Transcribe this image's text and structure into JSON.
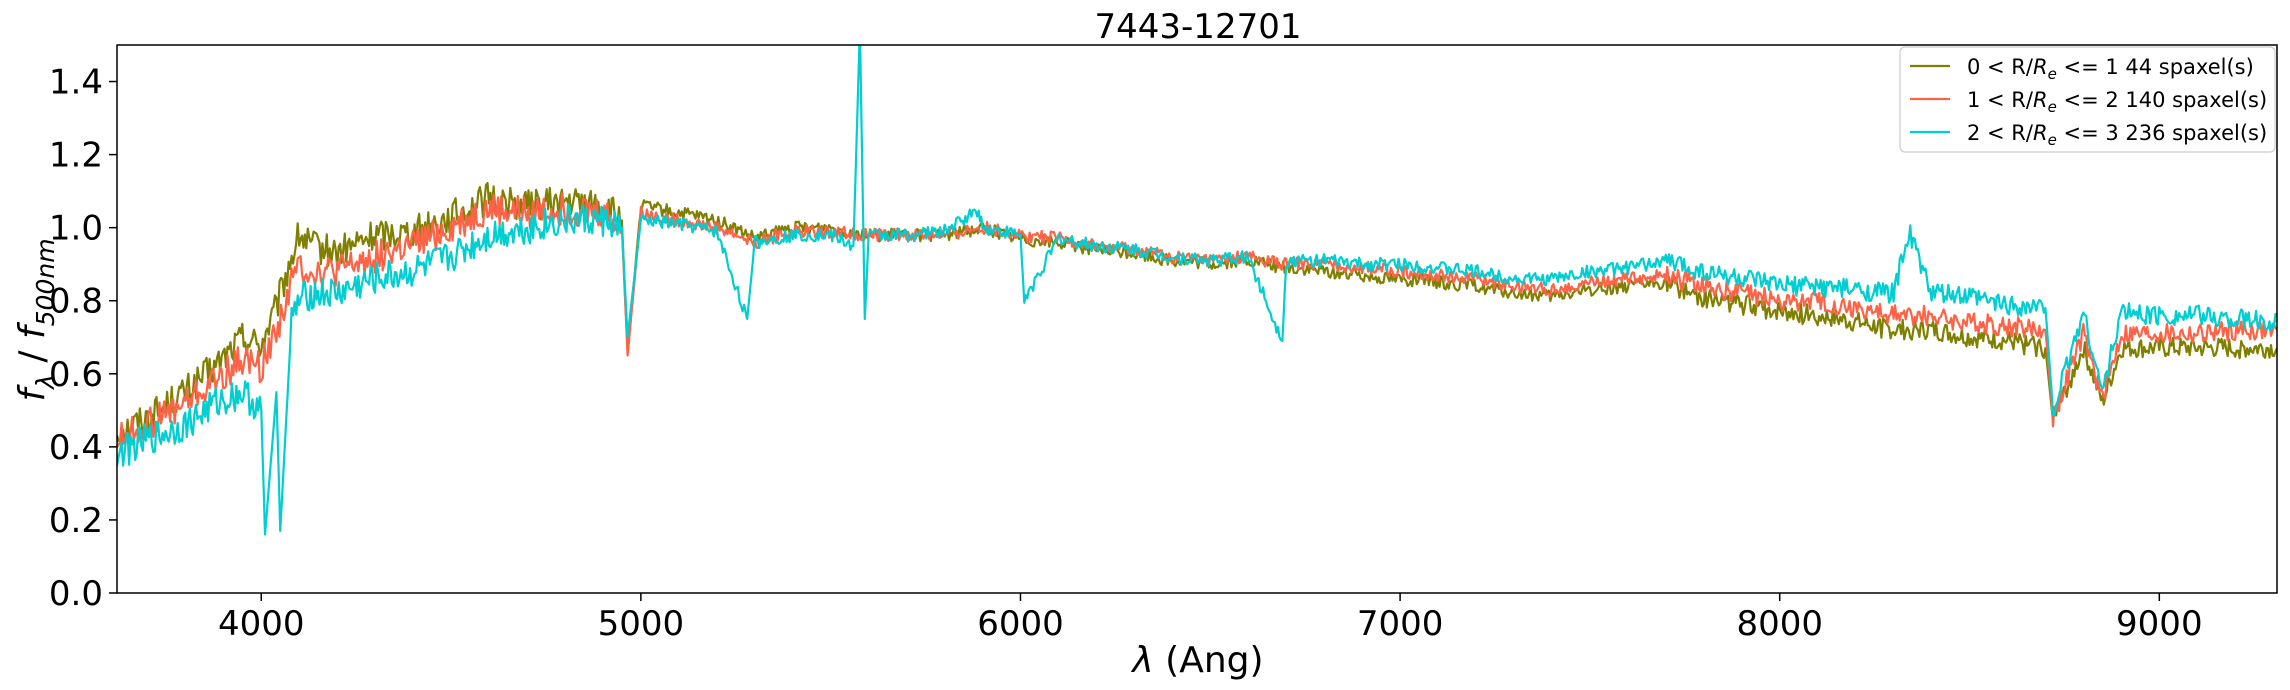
{
  "chart_data": {
    "type": "line",
    "title": "7443-12701",
    "xlabel": "λ (Ang)",
    "ylabel": "f_λ / f_500nm",
    "xlim": [
      3620,
      9310
    ],
    "ylim": [
      0.0,
      1.5
    ],
    "xticks": [
      4000,
      5000,
      6000,
      7000,
      8000,
      9000
    ],
    "yticks": [
      0.0,
      0.2,
      0.4,
      0.6,
      0.8,
      1.0,
      1.2,
      1.4
    ],
    "xtick_labels": [
      "4000",
      "5000",
      "6000",
      "7000",
      "8000",
      "9000"
    ],
    "ytick_labels": [
      "0.0",
      "0.2",
      "0.4",
      "0.6",
      "0.8",
      "1.0",
      "1.2",
      "1.4"
    ],
    "grid": false,
    "legend_position": "top-right",
    "series": [
      {
        "name": "0 < R/R_e <= 1 44 spaxel(s)",
        "label_prefix": "0 < R/",
        "label_suffix": " <= 1 44 spaxel(s)",
        "color": "#808000",
        "x": [
          3620,
          3700,
          3800,
          3880,
          3950,
          4000,
          4040,
          4080,
          4100,
          4130,
          4200,
          4300,
          4400,
          4500,
          4600,
          4700,
          4800,
          4900,
          4950,
          4965,
          5000,
          5100,
          5200,
          5300,
          5400,
          5500,
          5600,
          5700,
          5800,
          5900,
          6000,
          6100,
          6200,
          6300,
          6400,
          6500,
          6600,
          6700,
          6800,
          6900,
          7000,
          7100,
          7200,
          7300,
          7400,
          7500,
          7600,
          7700,
          7800,
          7900,
          8000,
          8100,
          8200,
          8300,
          8400,
          8500,
          8600,
          8700,
          8720,
          8800,
          8850,
          8900,
          9000,
          9100,
          9200,
          9310
        ],
        "y": [
          0.44,
          0.48,
          0.55,
          0.62,
          0.7,
          0.68,
          0.78,
          0.92,
          0.98,
          0.95,
          0.93,
          0.98,
          0.99,
          1.03,
          1.08,
          1.06,
          1.07,
          1.06,
          1.02,
          0.66,
          1.06,
          1.04,
          1.02,
          0.97,
          1.0,
          1.0,
          0.98,
          0.98,
          0.98,
          1.0,
          0.97,
          0.96,
          0.94,
          0.93,
          0.91,
          0.9,
          0.91,
          0.89,
          0.88,
          0.87,
          0.86,
          0.85,
          0.84,
          0.82,
          0.81,
          0.83,
          0.84,
          0.85,
          0.81,
          0.79,
          0.77,
          0.76,
          0.74,
          0.72,
          0.72,
          0.7,
          0.69,
          0.67,
          0.47,
          0.67,
          0.52,
          0.67,
          0.67,
          0.67,
          0.67,
          0.67
        ]
      },
      {
        "name": "1 < R/R_e <= 2 140 spaxel(s)",
        "label_prefix": "1 < R/",
        "label_suffix": " <= 2 140 spaxel(s)",
        "color": "#ff6347",
        "x": [
          3620,
          3700,
          3800,
          3880,
          3950,
          4000,
          4040,
          4080,
          4100,
          4130,
          4200,
          4300,
          4400,
          4500,
          4600,
          4700,
          4800,
          4900,
          4950,
          4965,
          5000,
          5100,
          5200,
          5300,
          5400,
          5500,
          5600,
          5700,
          5800,
          5900,
          6000,
          6100,
          6200,
          6300,
          6400,
          6500,
          6600,
          6700,
          6800,
          6900,
          7000,
          7100,
          7200,
          7300,
          7400,
          7500,
          7600,
          7700,
          7800,
          7900,
          8000,
          8100,
          8200,
          8300,
          8400,
          8500,
          8600,
          8700,
          8720,
          8800,
          8850,
          8900,
          9000,
          9100,
          9200,
          9310
        ],
        "y": [
          0.42,
          0.46,
          0.52,
          0.58,
          0.64,
          0.62,
          0.72,
          0.85,
          0.9,
          0.88,
          0.88,
          0.92,
          0.95,
          1.0,
          1.05,
          1.04,
          1.05,
          1.04,
          1.0,
          0.65,
          1.04,
          1.02,
          1.0,
          0.96,
          0.99,
          0.99,
          0.98,
          0.98,
          0.98,
          1.0,
          0.98,
          0.97,
          0.95,
          0.94,
          0.92,
          0.91,
          0.92,
          0.9,
          0.9,
          0.89,
          0.88,
          0.87,
          0.86,
          0.84,
          0.83,
          0.85,
          0.86,
          0.87,
          0.84,
          0.82,
          0.8,
          0.8,
          0.78,
          0.76,
          0.76,
          0.74,
          0.73,
          0.72,
          0.48,
          0.71,
          0.53,
          0.71,
          0.71,
          0.71,
          0.72,
          0.72
        ]
      },
      {
        "name": "2 < R/R_e <= 3 236 spaxel(s)",
        "label_prefix": "2 < R/",
        "label_suffix": " <= 3 236 spaxel(s)",
        "color": "#00ced1",
        "x": [
          3620,
          3700,
          3800,
          3880,
          3950,
          4000,
          4010,
          4040,
          4050,
          4080,
          4100,
          4130,
          4200,
          4300,
          4400,
          4500,
          4600,
          4700,
          4800,
          4900,
          4950,
          4965,
          5000,
          5100,
          5200,
          5280,
          5300,
          5400,
          5500,
          5560,
          5577,
          5590,
          5600,
          5700,
          5800,
          5890,
          5900,
          6000,
          6010,
          6100,
          6200,
          6300,
          6400,
          6500,
          6600,
          6690,
          6700,
          6800,
          6900,
          7000,
          7100,
          7200,
          7300,
          7400,
          7500,
          7600,
          7700,
          7800,
          7900,
          8000,
          8100,
          8200,
          8300,
          8340,
          8400,
          8500,
          8600,
          8700,
          8720,
          8800,
          8850,
          8900,
          9000,
          9100,
          9200,
          9310
        ],
        "y": [
          0.38,
          0.42,
          0.46,
          0.52,
          0.55,
          0.5,
          0.16,
          0.55,
          0.17,
          0.75,
          0.8,
          0.82,
          0.82,
          0.86,
          0.88,
          0.92,
          0.98,
          1.0,
          1.02,
          1.02,
          1.0,
          0.7,
          1.02,
          1.01,
          0.99,
          0.75,
          0.96,
          0.98,
          0.98,
          0.95,
          1.55,
          0.75,
          0.98,
          0.98,
          0.99,
          1.05,
          1.0,
          0.98,
          0.8,
          0.97,
          0.95,
          0.94,
          0.92,
          0.91,
          0.92,
          0.69,
          0.91,
          0.91,
          0.9,
          0.9,
          0.89,
          0.88,
          0.86,
          0.86,
          0.88,
          0.89,
          0.91,
          0.88,
          0.86,
          0.84,
          0.84,
          0.83,
          0.82,
          0.99,
          0.82,
          0.81,
          0.79,
          0.78,
          0.5,
          0.77,
          0.55,
          0.77,
          0.76,
          0.76,
          0.75,
          0.74
        ]
      }
    ]
  }
}
